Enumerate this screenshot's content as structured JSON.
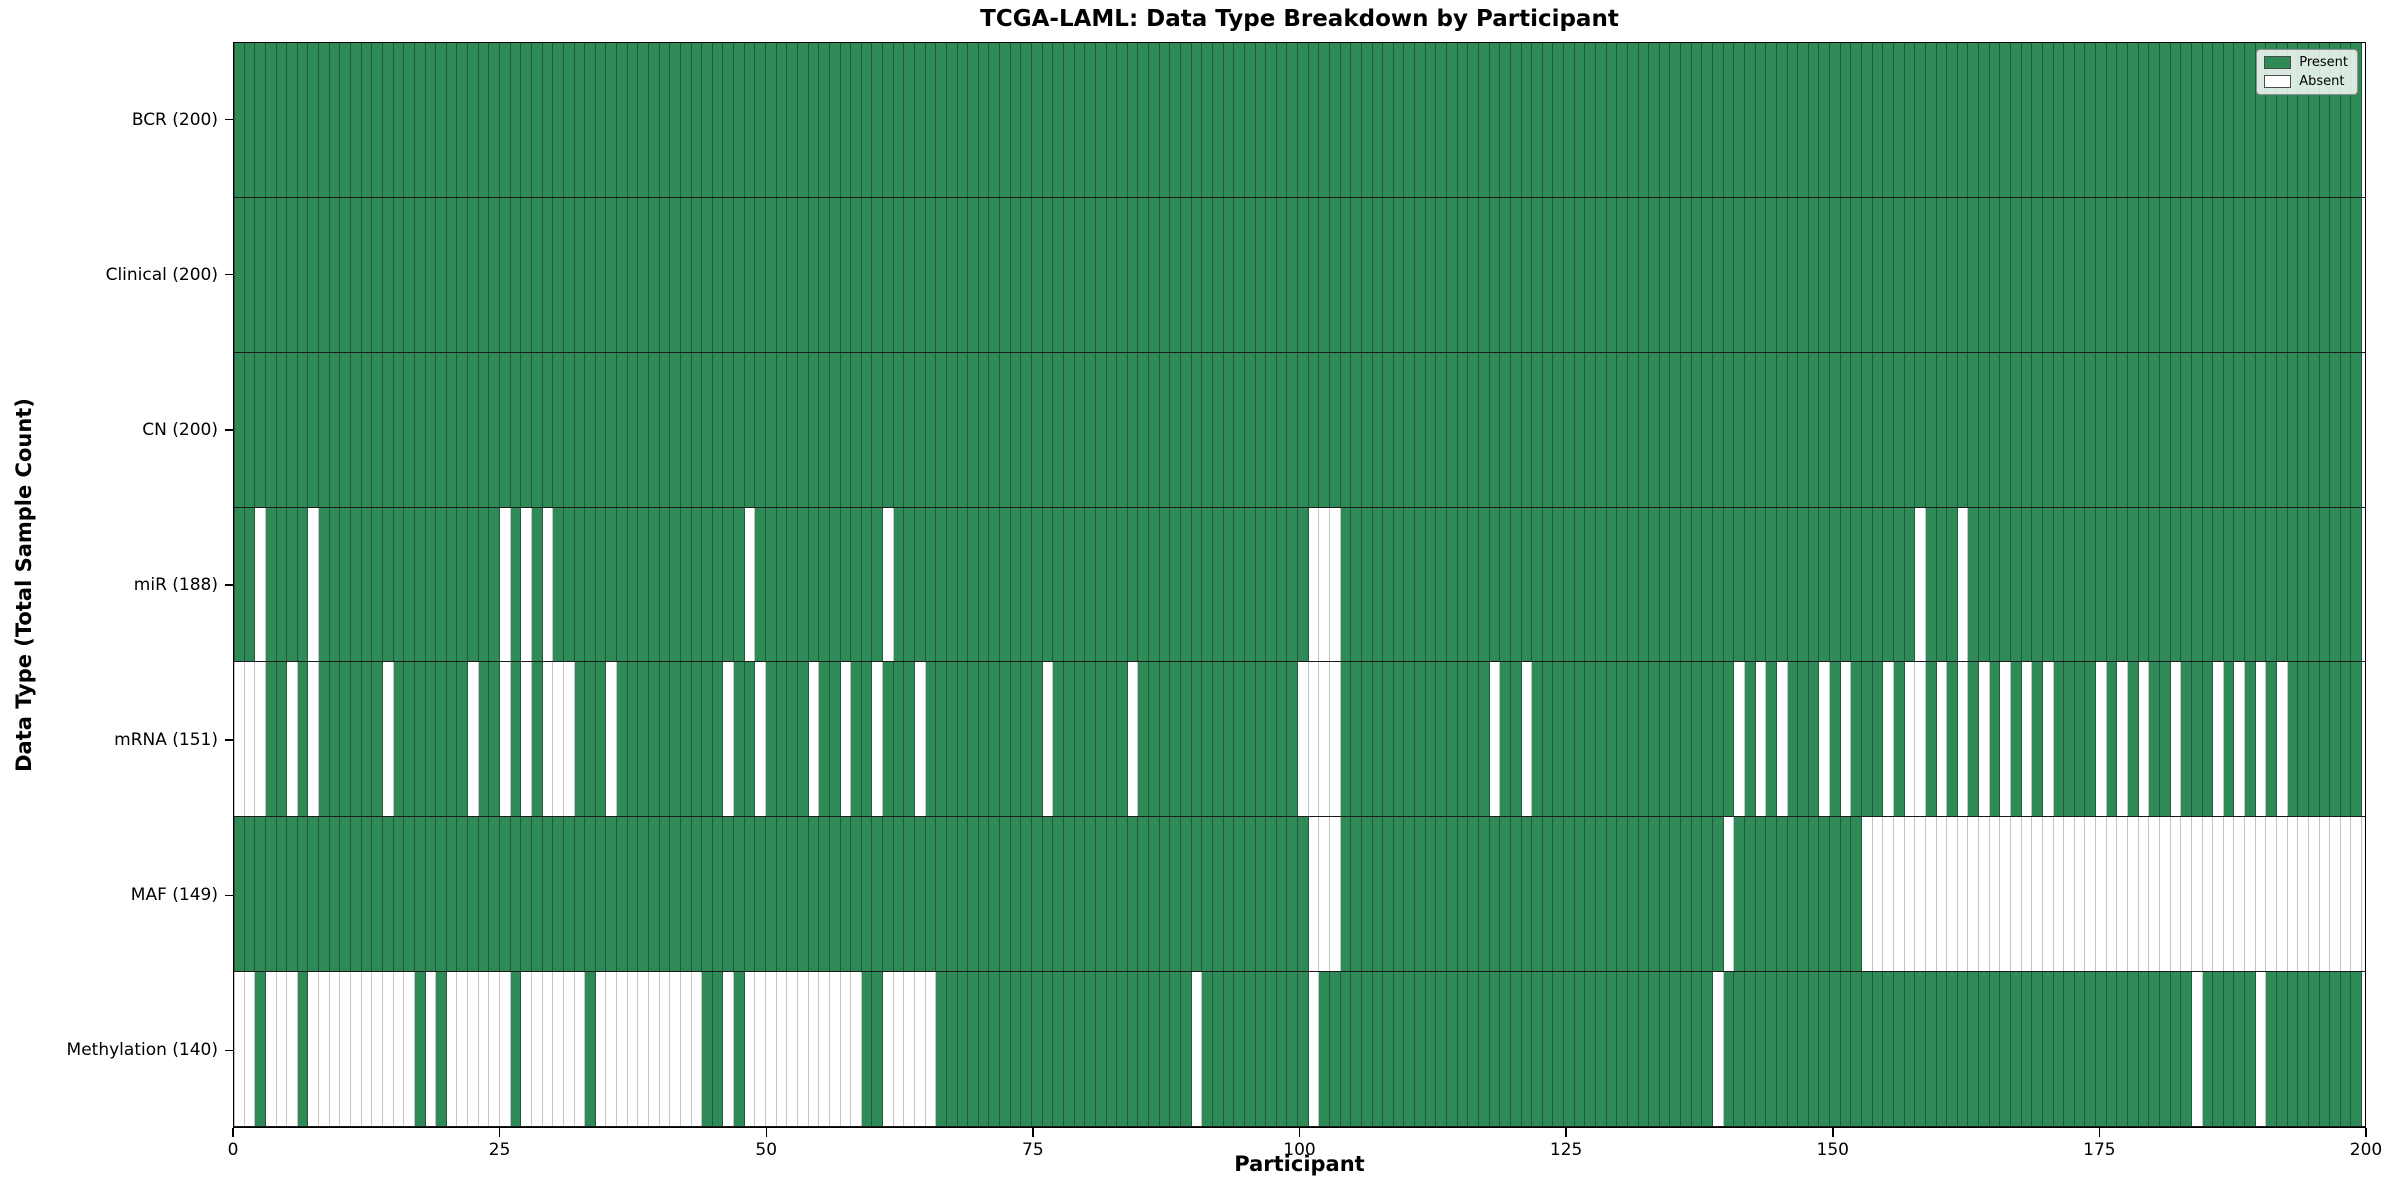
{
  "chart_data": {
    "type": "heatmap",
    "title": "TCGA-LAML: Data Type Breakdown by Participant",
    "xlabel": "Participant",
    "ylabel": "Data Type (Total Sample Count)",
    "n_participants": 200,
    "x_ticks": [
      0,
      25,
      50,
      75,
      100,
      125,
      150,
      175,
      200
    ],
    "grid": false,
    "legend": {
      "position": "upper right",
      "entries": [
        {
          "label": "Present",
          "color": "#2e8b57"
        },
        {
          "label": "Absent",
          "color": "#ffffff"
        }
      ]
    },
    "colors": {
      "present": "#2e8b57",
      "absent": "#ffffff",
      "present_edge": "#24573a",
      "absent_edge": "#c4c4c4",
      "row_divider": "#1a1a1a",
      "plot_border": "#000000"
    },
    "rows": [
      {
        "label": "BCR (200)",
        "data_type": "BCR",
        "present_count": 200,
        "absent_participants": []
      },
      {
        "label": "Clinical (200)",
        "data_type": "Clinical",
        "present_count": 200,
        "absent_participants": []
      },
      {
        "label": "CN (200)",
        "data_type": "CN",
        "present_count": 200,
        "absent_participants": []
      },
      {
        "label": "miR (188)",
        "data_type": "miR",
        "present_count": 188,
        "absent_participants": [
          2,
          7,
          25,
          27,
          29,
          48,
          61,
          101,
          102,
          103,
          158,
          162
        ]
      },
      {
        "label": "mRNA (151)",
        "data_type": "mRNA",
        "present_count": 151,
        "absent_participants": [
          0,
          1,
          2,
          5,
          7,
          14,
          22,
          25,
          27,
          29,
          30,
          31,
          35,
          46,
          49,
          54,
          57,
          60,
          64,
          76,
          84,
          100,
          101,
          102,
          103,
          118,
          121,
          141,
          143,
          145,
          149,
          151,
          155,
          157,
          158,
          160,
          162,
          164,
          166,
          168,
          170,
          175,
          177,
          179,
          182,
          186,
          188,
          190,
          192
        ]
      },
      {
        "label": "MAF (149)",
        "data_type": "MAF",
        "present_count": 149,
        "absent_participants": [
          101,
          102,
          103,
          140,
          153,
          154,
          155,
          156,
          157,
          158,
          159,
          160,
          161,
          162,
          163,
          164,
          165,
          166,
          167,
          168,
          169,
          170,
          171,
          172,
          173,
          174,
          175,
          176,
          177,
          178,
          179,
          180,
          181,
          182,
          183,
          184,
          185,
          186,
          187,
          188,
          189,
          190,
          191,
          192,
          193,
          194,
          195,
          196,
          197,
          198,
          199
        ]
      },
      {
        "label": "Methylation (140)",
        "data_type": "Methylation",
        "present_count": 140,
        "absent_participants": [
          0,
          1,
          3,
          4,
          5,
          7,
          8,
          9,
          10,
          11,
          12,
          13,
          14,
          15,
          16,
          18,
          20,
          21,
          22,
          23,
          24,
          25,
          27,
          28,
          29,
          30,
          31,
          32,
          34,
          35,
          36,
          37,
          38,
          39,
          40,
          41,
          42,
          43,
          46,
          48,
          49,
          50,
          51,
          52,
          53,
          54,
          55,
          56,
          57,
          58,
          61,
          62,
          63,
          64,
          65,
          90,
          101,
          139,
          184,
          190
        ]
      }
    ]
  }
}
